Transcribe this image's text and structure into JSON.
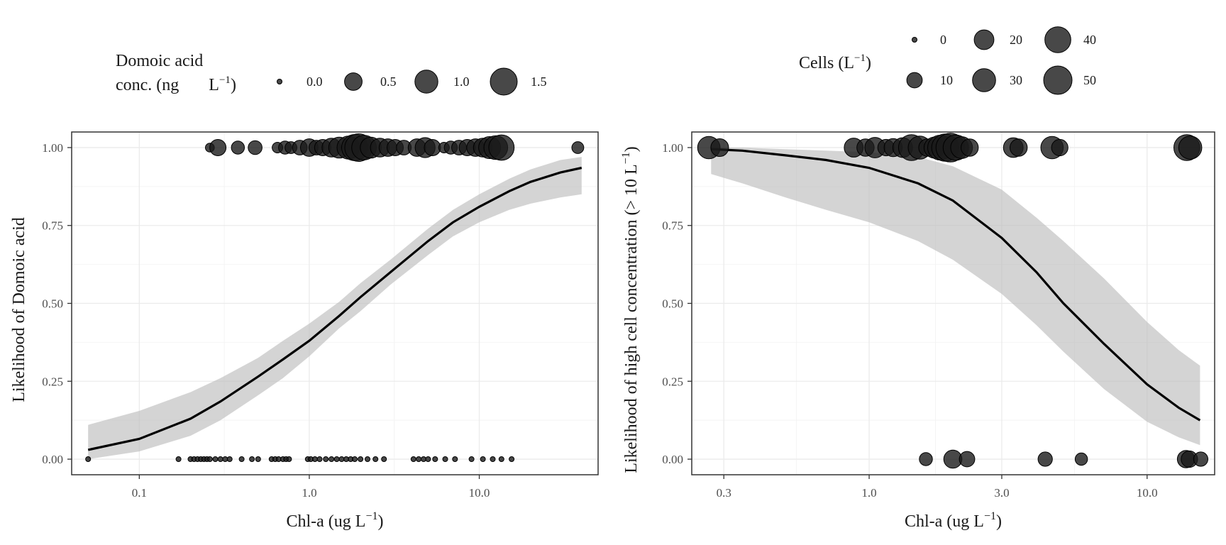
{
  "chart_data": [
    {
      "type": "scatter",
      "xscale": "log",
      "xlabel": "Chl-a (ug L",
      "xlabel_sup": "−1",
      "xlabel_close": ")",
      "ylabel": "Likelihood of Domoic acid",
      "xlim": [
        0.04,
        50
      ],
      "ylim": [
        -0.05,
        1.05
      ],
      "x_ticks": [
        0.1,
        1.0,
        10.0
      ],
      "x_tick_labels": [
        "0.1",
        "1.0",
        "10.0"
      ],
      "y_ticks": [
        0.0,
        0.25,
        0.5,
        0.75,
        1.0
      ],
      "y_tick_labels": [
        "0.00",
        "0.25",
        "0.50",
        "0.75",
        "1.00"
      ],
      "grid": true,
      "legend": {
        "placement": "top",
        "title_line1": "Domoic acid",
        "title_line2": "conc. (ng",
        "title_unit": "L",
        "title_sup": "−1",
        "title_close": ")",
        "entries": [
          {
            "label": "0.0",
            "value": 0.0
          },
          {
            "label": "0.5",
            "value": 0.5
          },
          {
            "label": "1.0",
            "value": 1.0
          },
          {
            "label": "1.5",
            "value": 1.5
          }
        ]
      },
      "size_domain": [
        0,
        1.5
      ],
      "size_radius_range": [
        3.5,
        19
      ],
      "fit": {
        "x": [
          0.05,
          0.1,
          0.2,
          0.3,
          0.5,
          0.7,
          1.0,
          1.5,
          2.0,
          3.0,
          5.0,
          7.0,
          10.0,
          15.0,
          20.0,
          30.0,
          40.0
        ],
        "y": [
          0.03,
          0.065,
          0.13,
          0.185,
          0.265,
          0.32,
          0.38,
          0.46,
          0.52,
          0.6,
          0.7,
          0.76,
          0.81,
          0.86,
          0.89,
          0.92,
          0.935
        ],
        "lower": [
          0.0,
          0.025,
          0.075,
          0.125,
          0.205,
          0.26,
          0.33,
          0.42,
          0.475,
          0.56,
          0.655,
          0.715,
          0.76,
          0.8,
          0.82,
          0.84,
          0.85
        ],
        "upper": [
          0.11,
          0.155,
          0.215,
          0.26,
          0.325,
          0.38,
          0.435,
          0.505,
          0.565,
          0.64,
          0.74,
          0.8,
          0.85,
          0.9,
          0.93,
          0.96,
          0.97
        ]
      },
      "points": [
        {
          "x": 0.26,
          "y": 1,
          "size": 0.05
        },
        {
          "x": 0.29,
          "y": 1,
          "size": 0.4
        },
        {
          "x": 0.38,
          "y": 1,
          "size": 0.2
        },
        {
          "x": 0.48,
          "y": 1,
          "size": 0.25
        },
        {
          "x": 0.65,
          "y": 1,
          "size": 0.1
        },
        {
          "x": 0.72,
          "y": 1,
          "size": 0.2
        },
        {
          "x": 0.78,
          "y": 1,
          "size": 0.15
        },
        {
          "x": 0.88,
          "y": 1,
          "size": 0.3
        },
        {
          "x": 1.0,
          "y": 1,
          "size": 0.5
        },
        {
          "x": 1.1,
          "y": 1,
          "size": 0.3
        },
        {
          "x": 1.2,
          "y": 1,
          "size": 0.4
        },
        {
          "x": 1.35,
          "y": 1,
          "size": 0.6
        },
        {
          "x": 1.5,
          "y": 1,
          "size": 0.8
        },
        {
          "x": 1.7,
          "y": 1,
          "size": 1.0
        },
        {
          "x": 1.85,
          "y": 1,
          "size": 1.4
        },
        {
          "x": 1.95,
          "y": 1,
          "size": 1.6
        },
        {
          "x": 2.1,
          "y": 1,
          "size": 1.2
        },
        {
          "x": 2.3,
          "y": 1,
          "size": 0.8
        },
        {
          "x": 2.6,
          "y": 1,
          "size": 0.6
        },
        {
          "x": 2.9,
          "y": 1,
          "size": 0.5
        },
        {
          "x": 3.2,
          "y": 1,
          "size": 0.4
        },
        {
          "x": 3.6,
          "y": 1,
          "size": 0.3
        },
        {
          "x": 4.3,
          "y": 1,
          "size": 0.5
        },
        {
          "x": 4.8,
          "y": 1,
          "size": 0.7
        },
        {
          "x": 5.3,
          "y": 1,
          "size": 0.4
        },
        {
          "x": 6.2,
          "y": 1,
          "size": 0.1
        },
        {
          "x": 6.8,
          "y": 1,
          "size": 0.2
        },
        {
          "x": 7.6,
          "y": 1,
          "size": 0.3
        },
        {
          "x": 8.5,
          "y": 1,
          "size": 0.4
        },
        {
          "x": 9.5,
          "y": 1,
          "size": 0.5
        },
        {
          "x": 10.5,
          "y": 1,
          "size": 0.6
        },
        {
          "x": 11.5,
          "y": 1,
          "size": 0.9
        },
        {
          "x": 12.5,
          "y": 1,
          "size": 1.1
        },
        {
          "x": 13.5,
          "y": 1,
          "size": 1.3
        },
        {
          "x": 38.0,
          "y": 1,
          "size": 0.15
        },
        {
          "x": 0.05,
          "y": 0,
          "size": 0
        },
        {
          "x": 0.17,
          "y": 0,
          "size": 0
        },
        {
          "x": 0.2,
          "y": 0,
          "size": 0
        },
        {
          "x": 0.21,
          "y": 0,
          "size": 0
        },
        {
          "x": 0.22,
          "y": 0,
          "size": 0
        },
        {
          "x": 0.23,
          "y": 0,
          "size": 0
        },
        {
          "x": 0.24,
          "y": 0,
          "size": 0
        },
        {
          "x": 0.25,
          "y": 0,
          "size": 0
        },
        {
          "x": 0.26,
          "y": 0,
          "size": 0
        },
        {
          "x": 0.28,
          "y": 0,
          "size": 0
        },
        {
          "x": 0.3,
          "y": 0,
          "size": 0
        },
        {
          "x": 0.32,
          "y": 0,
          "size": 0
        },
        {
          "x": 0.34,
          "y": 0,
          "size": 0
        },
        {
          "x": 0.4,
          "y": 0,
          "size": 0
        },
        {
          "x": 0.46,
          "y": 0,
          "size": 0
        },
        {
          "x": 0.5,
          "y": 0,
          "size": 0
        },
        {
          "x": 0.6,
          "y": 0,
          "size": 0
        },
        {
          "x": 0.63,
          "y": 0,
          "size": 0
        },
        {
          "x": 0.66,
          "y": 0,
          "size": 0
        },
        {
          "x": 0.7,
          "y": 0,
          "size": 0
        },
        {
          "x": 0.73,
          "y": 0,
          "size": 0
        },
        {
          "x": 0.76,
          "y": 0,
          "size": 0
        },
        {
          "x": 0.98,
          "y": 0,
          "size": 0
        },
        {
          "x": 1.02,
          "y": 0,
          "size": 0
        },
        {
          "x": 1.08,
          "y": 0,
          "size": 0
        },
        {
          "x": 1.15,
          "y": 0,
          "size": 0
        },
        {
          "x": 1.25,
          "y": 0,
          "size": 0
        },
        {
          "x": 1.35,
          "y": 0,
          "size": 0
        },
        {
          "x": 1.45,
          "y": 0,
          "size": 0
        },
        {
          "x": 1.55,
          "y": 0,
          "size": 0
        },
        {
          "x": 1.65,
          "y": 0,
          "size": 0
        },
        {
          "x": 1.75,
          "y": 0,
          "size": 0
        },
        {
          "x": 1.85,
          "y": 0,
          "size": 0
        },
        {
          "x": 2.0,
          "y": 0,
          "size": 0
        },
        {
          "x": 2.2,
          "y": 0,
          "size": 0
        },
        {
          "x": 2.45,
          "y": 0,
          "size": 0
        },
        {
          "x": 2.75,
          "y": 0,
          "size": 0
        },
        {
          "x": 4.1,
          "y": 0,
          "size": 0
        },
        {
          "x": 4.4,
          "y": 0,
          "size": 0
        },
        {
          "x": 4.7,
          "y": 0,
          "size": 0
        },
        {
          "x": 5.0,
          "y": 0,
          "size": 0
        },
        {
          "x": 5.5,
          "y": 0,
          "size": 0
        },
        {
          "x": 6.3,
          "y": 0,
          "size": 0
        },
        {
          "x": 7.2,
          "y": 0,
          "size": 0
        },
        {
          "x": 9.0,
          "y": 0,
          "size": 0
        },
        {
          "x": 10.5,
          "y": 0,
          "size": 0
        },
        {
          "x": 12.0,
          "y": 0,
          "size": 0
        },
        {
          "x": 13.5,
          "y": 0,
          "size": 0
        },
        {
          "x": 15.5,
          "y": 0,
          "size": 0
        }
      ]
    },
    {
      "type": "scatter",
      "xscale": "log",
      "xlabel": "Chl-a (ug L",
      "xlabel_sup": "−1",
      "xlabel_close": ")",
      "ylabel": "Likelihood of high cell concentration (> 10 L",
      "ylabel_sup": "−1",
      "ylabel_close": ")",
      "xlim": [
        0.23,
        17.5
      ],
      "ylim": [
        -0.05,
        1.05
      ],
      "x_ticks": [
        0.3,
        1.0,
        3.0,
        10.0
      ],
      "x_tick_labels": [
        "0.3",
        "1.0",
        "3.0",
        "10.0"
      ],
      "y_ticks": [
        0.0,
        0.25,
        0.5,
        0.75,
        1.0
      ],
      "y_tick_labels": [
        "0.00",
        "0.25",
        "0.50",
        "0.75",
        "1.00"
      ],
      "grid": true,
      "legend": {
        "placement": "top",
        "title": "Cells (L",
        "title_sup": "−1",
        "title_close": ")",
        "entries": [
          {
            "label": "0",
            "value": 0
          },
          {
            "label": "10",
            "value": 10
          },
          {
            "label": "20",
            "value": 20
          },
          {
            "label": "30",
            "value": 30
          },
          {
            "label": "40",
            "value": 40
          },
          {
            "label": "50",
            "value": 50
          }
        ]
      },
      "size_domain": [
        0,
        50
      ],
      "size_radius_range": [
        3.5,
        20
      ],
      "fit": {
        "x": [
          0.27,
          0.35,
          0.5,
          0.7,
          1.0,
          1.5,
          2.0,
          3.0,
          4.0,
          5.0,
          7.0,
          10.0,
          13.0,
          15.5
        ],
        "y": [
          0.995,
          0.99,
          0.975,
          0.96,
          0.935,
          0.885,
          0.83,
          0.71,
          0.6,
          0.5,
          0.37,
          0.24,
          0.165,
          0.125
        ],
        "lower": [
          0.915,
          0.885,
          0.84,
          0.8,
          0.76,
          0.7,
          0.64,
          0.53,
          0.43,
          0.345,
          0.225,
          0.12,
          0.07,
          0.045
        ],
        "upper": [
          1.0,
          1.0,
          0.995,
          0.99,
          0.985,
          0.97,
          0.94,
          0.865,
          0.775,
          0.7,
          0.58,
          0.44,
          0.35,
          0.3
        ]
      },
      "points": [
        {
          "x": 0.265,
          "y": 1,
          "size": 28
        },
        {
          "x": 0.29,
          "y": 1,
          "size": 15
        },
        {
          "x": 0.88,
          "y": 1,
          "size": 18
        },
        {
          "x": 0.97,
          "y": 1,
          "size": 14
        },
        {
          "x": 1.05,
          "y": 1,
          "size": 22
        },
        {
          "x": 1.15,
          "y": 1,
          "size": 12
        },
        {
          "x": 1.22,
          "y": 1,
          "size": 16
        },
        {
          "x": 1.32,
          "y": 1,
          "size": 20
        },
        {
          "x": 1.42,
          "y": 1,
          "size": 40
        },
        {
          "x": 1.52,
          "y": 1,
          "size": 30
        },
        {
          "x": 1.62,
          "y": 1,
          "size": 14
        },
        {
          "x": 1.72,
          "y": 1,
          "size": 24
        },
        {
          "x": 1.8,
          "y": 1,
          "size": 36
        },
        {
          "x": 1.88,
          "y": 1,
          "size": 46
        },
        {
          "x": 1.96,
          "y": 1,
          "size": 52
        },
        {
          "x": 2.05,
          "y": 1,
          "size": 38
        },
        {
          "x": 2.15,
          "y": 1,
          "size": 26
        },
        {
          "x": 2.3,
          "y": 1,
          "size": 14
        },
        {
          "x": 3.3,
          "y": 1,
          "size": 20
        },
        {
          "x": 3.45,
          "y": 1,
          "size": 14
        },
        {
          "x": 4.55,
          "y": 1,
          "size": 28
        },
        {
          "x": 4.85,
          "y": 1,
          "size": 12
        },
        {
          "x": 13.9,
          "y": 1,
          "size": 40
        },
        {
          "x": 14.3,
          "y": 1,
          "size": 30
        },
        {
          "x": 1.6,
          "y": 0,
          "size": 6
        },
        {
          "x": 2.0,
          "y": 0,
          "size": 16
        },
        {
          "x": 2.25,
          "y": 0,
          "size": 10
        },
        {
          "x": 4.3,
          "y": 0,
          "size": 8
        },
        {
          "x": 5.8,
          "y": 0,
          "size": 5
        },
        {
          "x": 13.8,
          "y": 0,
          "size": 14
        },
        {
          "x": 14.2,
          "y": 0,
          "size": 12
        },
        {
          "x": 15.6,
          "y": 0,
          "size": 8
        }
      ]
    }
  ]
}
